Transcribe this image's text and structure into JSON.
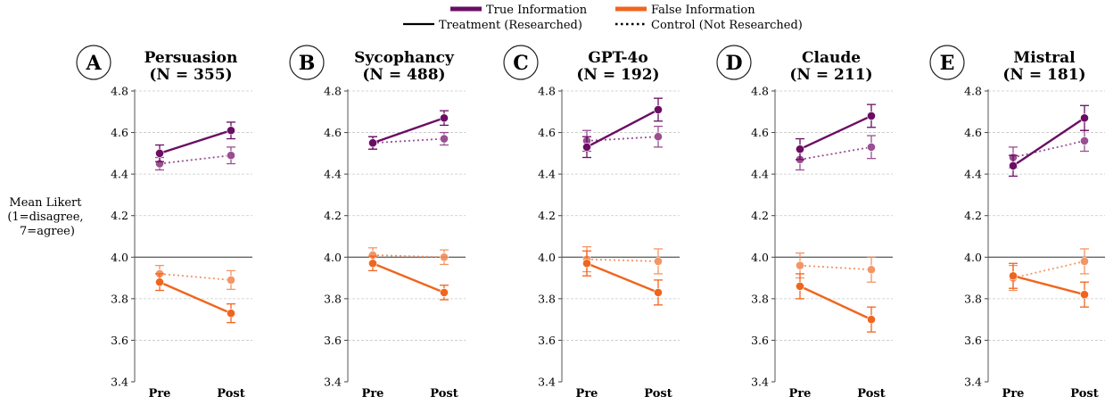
{
  "legend": {
    "items": [
      {
        "label": "True Information",
        "style": "solid-thick",
        "color": "#6a0d63"
      },
      {
        "label": "False Information",
        "style": "solid-thick",
        "color": "#f0651e"
      },
      {
        "label": "Treatment (Researched)",
        "style": "solid",
        "color": "#000000"
      },
      {
        "label": "Control (Not Researched)",
        "style": "dotted",
        "color": "#000000"
      }
    ]
  },
  "ylabel_lines": [
    "Mean Likert",
    "(1=disagree,",
    "7=agree)"
  ],
  "colors": {
    "true_treatment": "#6a0d63",
    "true_control": "#8e3d86",
    "false_treatment": "#f0651e",
    "false_control": "#f38a55"
  },
  "chart_data": [
    {
      "type": "line",
      "letter": "A",
      "title_lines": [
        "Persuasion",
        "(N = 355)"
      ],
      "categories": [
        "Pre",
        "Post"
      ],
      "ylim": [
        3.4,
        4.8
      ],
      "yticks": [
        "3.4",
        "3.6",
        "3.8",
        "4.0",
        "4.2",
        "4.4",
        "4.6",
        "4.8"
      ],
      "reference_line": 4.0,
      "grid": true,
      "series": [
        {
          "name": "True Information",
          "group": "Treatment (Researched)",
          "values": [
            4.5,
            4.61
          ],
          "errors": [
            0.04,
            0.04
          ]
        },
        {
          "name": "True Information",
          "group": "Control (Not Researched)",
          "values": [
            4.45,
            4.49
          ],
          "errors": [
            0.03,
            0.04
          ]
        },
        {
          "name": "False Information",
          "group": "Treatment (Researched)",
          "values": [
            3.88,
            3.73
          ],
          "errors": [
            0.04,
            0.045
          ]
        },
        {
          "name": "False Information",
          "group": "Control (Not Researched)",
          "values": [
            3.92,
            3.89
          ],
          "errors": [
            0.04,
            0.045
          ]
        }
      ]
    },
    {
      "type": "line",
      "letter": "B",
      "title_lines": [
        "Sycophancy",
        "(N = 488)"
      ],
      "categories": [
        "Pre",
        "Post"
      ],
      "ylim": [
        3.4,
        4.8
      ],
      "yticks": [
        "3.4",
        "3.6",
        "3.8",
        "4.0",
        "4.2",
        "4.4",
        "4.6",
        "4.8"
      ],
      "reference_line": 4.0,
      "grid": true,
      "series": [
        {
          "name": "True Information",
          "group": "Treatment (Researched)",
          "values": [
            4.55,
            4.67
          ],
          "errors": [
            0.03,
            0.035
          ]
        },
        {
          "name": "True Information",
          "group": "Control (Not Researched)",
          "values": [
            4.55,
            4.57
          ],
          "errors": [
            0.03,
            0.03
          ]
        },
        {
          "name": "False Information",
          "group": "Treatment (Researched)",
          "values": [
            3.97,
            3.83
          ],
          "errors": [
            0.035,
            0.035
          ]
        },
        {
          "name": "False Information",
          "group": "Control (Not Researched)",
          "values": [
            4.01,
            4.0
          ],
          "errors": [
            0.035,
            0.035
          ]
        }
      ]
    },
    {
      "type": "line",
      "letter": "C",
      "title_lines": [
        "GPT-4o",
        "(N = 192)"
      ],
      "categories": [
        "Pre",
        "Post"
      ],
      "ylim": [
        3.4,
        4.8
      ],
      "yticks": [
        "3.4",
        "3.6",
        "3.8",
        "4.0",
        "4.2",
        "4.4",
        "4.6",
        "4.8"
      ],
      "reference_line": 4.0,
      "grid": true,
      "series": [
        {
          "name": "True Information",
          "group": "Treatment (Researched)",
          "values": [
            4.53,
            4.71
          ],
          "errors": [
            0.05,
            0.055
          ]
        },
        {
          "name": "True Information",
          "group": "Control (Not Researched)",
          "values": [
            4.56,
            4.58
          ],
          "errors": [
            0.05,
            0.05
          ]
        },
        {
          "name": "False Information",
          "group": "Treatment (Researched)",
          "values": [
            3.97,
            3.83
          ],
          "errors": [
            0.06,
            0.06
          ]
        },
        {
          "name": "False Information",
          "group": "Control (Not Researched)",
          "values": [
            3.99,
            3.98
          ],
          "errors": [
            0.06,
            0.06
          ]
        }
      ]
    },
    {
      "type": "line",
      "letter": "D",
      "title_lines": [
        "Claude",
        "(N = 211)"
      ],
      "categories": [
        "Pre",
        "Post"
      ],
      "ylim": [
        3.4,
        4.8
      ],
      "yticks": [
        "3.4",
        "3.6",
        "3.8",
        "4.0",
        "4.2",
        "4.4",
        "4.6",
        "4.8"
      ],
      "reference_line": 4.0,
      "grid": true,
      "series": [
        {
          "name": "True Information",
          "group": "Treatment (Researched)",
          "values": [
            4.52,
            4.68
          ],
          "errors": [
            0.05,
            0.055
          ]
        },
        {
          "name": "True Information",
          "group": "Control (Not Researched)",
          "values": [
            4.47,
            4.53
          ],
          "errors": [
            0.05,
            0.055
          ]
        },
        {
          "name": "False Information",
          "group": "Treatment (Researched)",
          "values": [
            3.86,
            3.7
          ],
          "errors": [
            0.06,
            0.06
          ]
        },
        {
          "name": "False Information",
          "group": "Control (Not Researched)",
          "values": [
            3.96,
            3.94
          ],
          "errors": [
            0.06,
            0.06
          ]
        }
      ]
    },
    {
      "type": "line",
      "letter": "E",
      "title_lines": [
        "Mistral",
        "(N = 181)"
      ],
      "categories": [
        "Pre",
        "Post"
      ],
      "ylim": [
        3.4,
        4.8
      ],
      "yticks": [
        "3.4",
        "3.6",
        "3.8",
        "4.0",
        "4.2",
        "4.4",
        "4.6",
        "4.8"
      ],
      "reference_line": 4.0,
      "grid": true,
      "series": [
        {
          "name": "True Information",
          "group": "Treatment (Researched)",
          "values": [
            4.44,
            4.67
          ],
          "errors": [
            0.05,
            0.06
          ]
        },
        {
          "name": "True Information",
          "group": "Control (Not Researched)",
          "values": [
            4.48,
            4.56
          ],
          "errors": [
            0.05,
            0.05
          ]
        },
        {
          "name": "False Information",
          "group": "Treatment (Researched)",
          "values": [
            3.91,
            3.82
          ],
          "errors": [
            0.06,
            0.06
          ]
        },
        {
          "name": "False Information",
          "group": "Control (Not Researched)",
          "values": [
            3.9,
            3.98
          ],
          "errors": [
            0.06,
            0.06
          ]
        }
      ]
    }
  ]
}
